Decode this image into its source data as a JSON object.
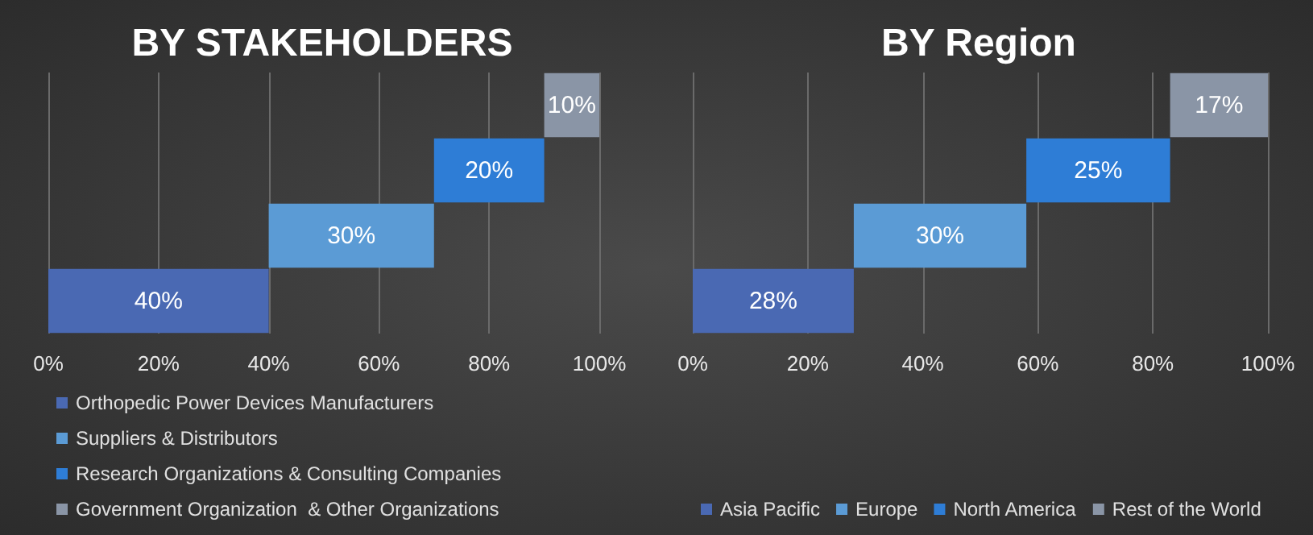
{
  "chart_data": [
    {
      "type": "bar",
      "title": "BY STAKEHOLDERS",
      "orientation": "horizontal",
      "categories": [
        null,
        null,
        null,
        null
      ],
      "xlim": [
        0,
        100
      ],
      "xticks": [
        {
          "value": 0,
          "label": "0%"
        },
        {
          "value": 20,
          "label": "20%"
        },
        {
          "value": 40,
          "label": "40%"
        },
        {
          "value": 60,
          "label": "60%"
        },
        {
          "value": 80,
          "label": "80%"
        },
        {
          "value": 100,
          "label": "100%"
        }
      ],
      "grid": "x",
      "legend": "bottom",
      "series": [
        {
          "name": "Orthopedic Power Devices Manufacturers",
          "color": "#4a69b3",
          "values": [
            null,
            null,
            null,
            40
          ],
          "base": [
            null,
            null,
            null,
            0
          ],
          "value_labels": [
            null,
            null,
            null,
            "40%"
          ]
        },
        {
          "name": "Suppliers & Distributors",
          "color": "#5b9bd5",
          "values": [
            null,
            null,
            30,
            null
          ],
          "base": [
            null,
            null,
            40,
            null
          ],
          "value_labels": [
            null,
            null,
            "30%",
            null
          ]
        },
        {
          "name": "Research Organizations & Consulting Companies",
          "color": "#2e7dd6",
          "values": [
            null,
            20,
            null,
            null
          ],
          "base": [
            null,
            70,
            null,
            null
          ],
          "value_labels": [
            null,
            "20%",
            null,
            null
          ]
        },
        {
          "name": "Government Organization  & Other Organizations",
          "color": "#8a95a6",
          "values": [
            10,
            null,
            null,
            null
          ],
          "base": [
            90,
            null,
            null,
            null
          ],
          "value_labels": [
            "10%",
            null,
            null,
            null
          ]
        }
      ]
    },
    {
      "type": "bar",
      "title": "BY Region",
      "orientation": "horizontal",
      "categories": [
        null,
        null,
        null,
        null
      ],
      "xlim": [
        0,
        100
      ],
      "xticks": [
        {
          "value": 0,
          "label": "0%"
        },
        {
          "value": 20,
          "label": "20%"
        },
        {
          "value": 40,
          "label": "40%"
        },
        {
          "value": 60,
          "label": "60%"
        },
        {
          "value": 80,
          "label": "80%"
        },
        {
          "value": 100,
          "label": "100%"
        }
      ],
      "grid": "x",
      "legend": "bottom",
      "series": [
        {
          "name": "Asia Pacific",
          "color": "#4a69b3",
          "values": [
            null,
            null,
            null,
            28
          ],
          "base": [
            null,
            null,
            null,
            0
          ],
          "value_labels": [
            null,
            null,
            null,
            "28%"
          ]
        },
        {
          "name": "Europe",
          "color": "#5b9bd5",
          "values": [
            null,
            null,
            30,
            null
          ],
          "base": [
            null,
            null,
            28,
            null
          ],
          "value_labels": [
            null,
            null,
            "30%",
            null
          ]
        },
        {
          "name": "North America",
          "color": "#2e7dd6",
          "values": [
            null,
            25,
            null,
            null
          ],
          "base": [
            null,
            58,
            null,
            null
          ],
          "value_labels": [
            null,
            "25%",
            null,
            null
          ]
        },
        {
          "name": "Rest of the World",
          "color": "#8a95a6",
          "values": [
            17,
            null,
            null,
            null
          ],
          "base": [
            83,
            null,
            null,
            null
          ],
          "value_labels": [
            "17%",
            null,
            null,
            null
          ]
        }
      ]
    }
  ]
}
